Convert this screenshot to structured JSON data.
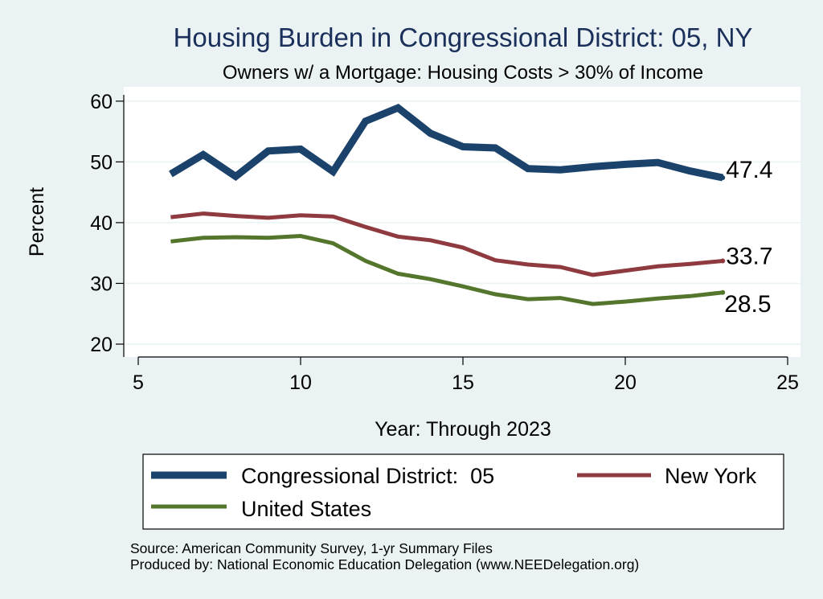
{
  "colors": {
    "background": "#eaf2f3",
    "plot_background": "#ffffff",
    "grid": "#eaf2f3",
    "title": "#1a2f5a",
    "district": "#1a426b",
    "new_york": "#8e3a3f",
    "united_states": "#53762c"
  },
  "chart_data": {
    "type": "line",
    "title": "Housing Burden in Congressional District:  05, NY",
    "subtitle": "Owners w/ a Mortgage: Housing Costs > 30% of Income",
    "xlabel": "Year: Through 2023",
    "ylabel": "Percent",
    "xlim": [
      5,
      25
    ],
    "ylim": [
      18,
      62
    ],
    "xticks": [
      5,
      10,
      15,
      20,
      25
    ],
    "yticks": [
      20,
      30,
      40,
      50,
      60
    ],
    "grid": true,
    "legend_position": "bottom",
    "series": [
      {
        "name": "Congressional District:  05",
        "color": "#1a426b",
        "width": "thick",
        "x": [
          6,
          7,
          8,
          9,
          10,
          11,
          12,
          13,
          14,
          15,
          16,
          17,
          18,
          19,
          20,
          21,
          22,
          23
        ],
        "values": [
          48.0,
          51.2,
          47.6,
          51.8,
          52.1,
          48.4,
          56.7,
          58.9,
          54.7,
          52.5,
          52.3,
          48.9,
          48.7,
          49.2,
          49.6,
          49.9,
          48.5,
          47.4
        ],
        "end_label": "47.4"
      },
      {
        "name": "New York",
        "color": "#8e3a3f",
        "width": "medium",
        "x": [
          6,
          7,
          8,
          9,
          10,
          11,
          12,
          13,
          14,
          15,
          16,
          17,
          18,
          19,
          20,
          21,
          22,
          23
        ],
        "values": [
          40.9,
          41.5,
          41.1,
          40.8,
          41.2,
          41.0,
          39.3,
          37.7,
          37.1,
          35.9,
          33.8,
          33.1,
          32.7,
          31.4,
          32.1,
          32.8,
          33.2,
          33.7
        ],
        "end_label": "33.7"
      },
      {
        "name": "United States",
        "color": "#53762c",
        "width": "medium",
        "x": [
          6,
          7,
          8,
          9,
          10,
          11,
          12,
          13,
          14,
          15,
          16,
          17,
          18,
          19,
          20,
          21,
          22,
          23
        ],
        "values": [
          36.9,
          37.5,
          37.6,
          37.5,
          37.8,
          36.6,
          33.7,
          31.6,
          30.7,
          29.5,
          28.2,
          27.4,
          27.6,
          26.6,
          27.0,
          27.5,
          27.9,
          28.5
        ],
        "end_label": "28.5"
      }
    ]
  },
  "notes": {
    "source": "Source: American Community Survey, 1-yr Summary Files",
    "produced_by": "Produced by: National Economic Education Delegation (www.NEEDelegation.org)"
  }
}
